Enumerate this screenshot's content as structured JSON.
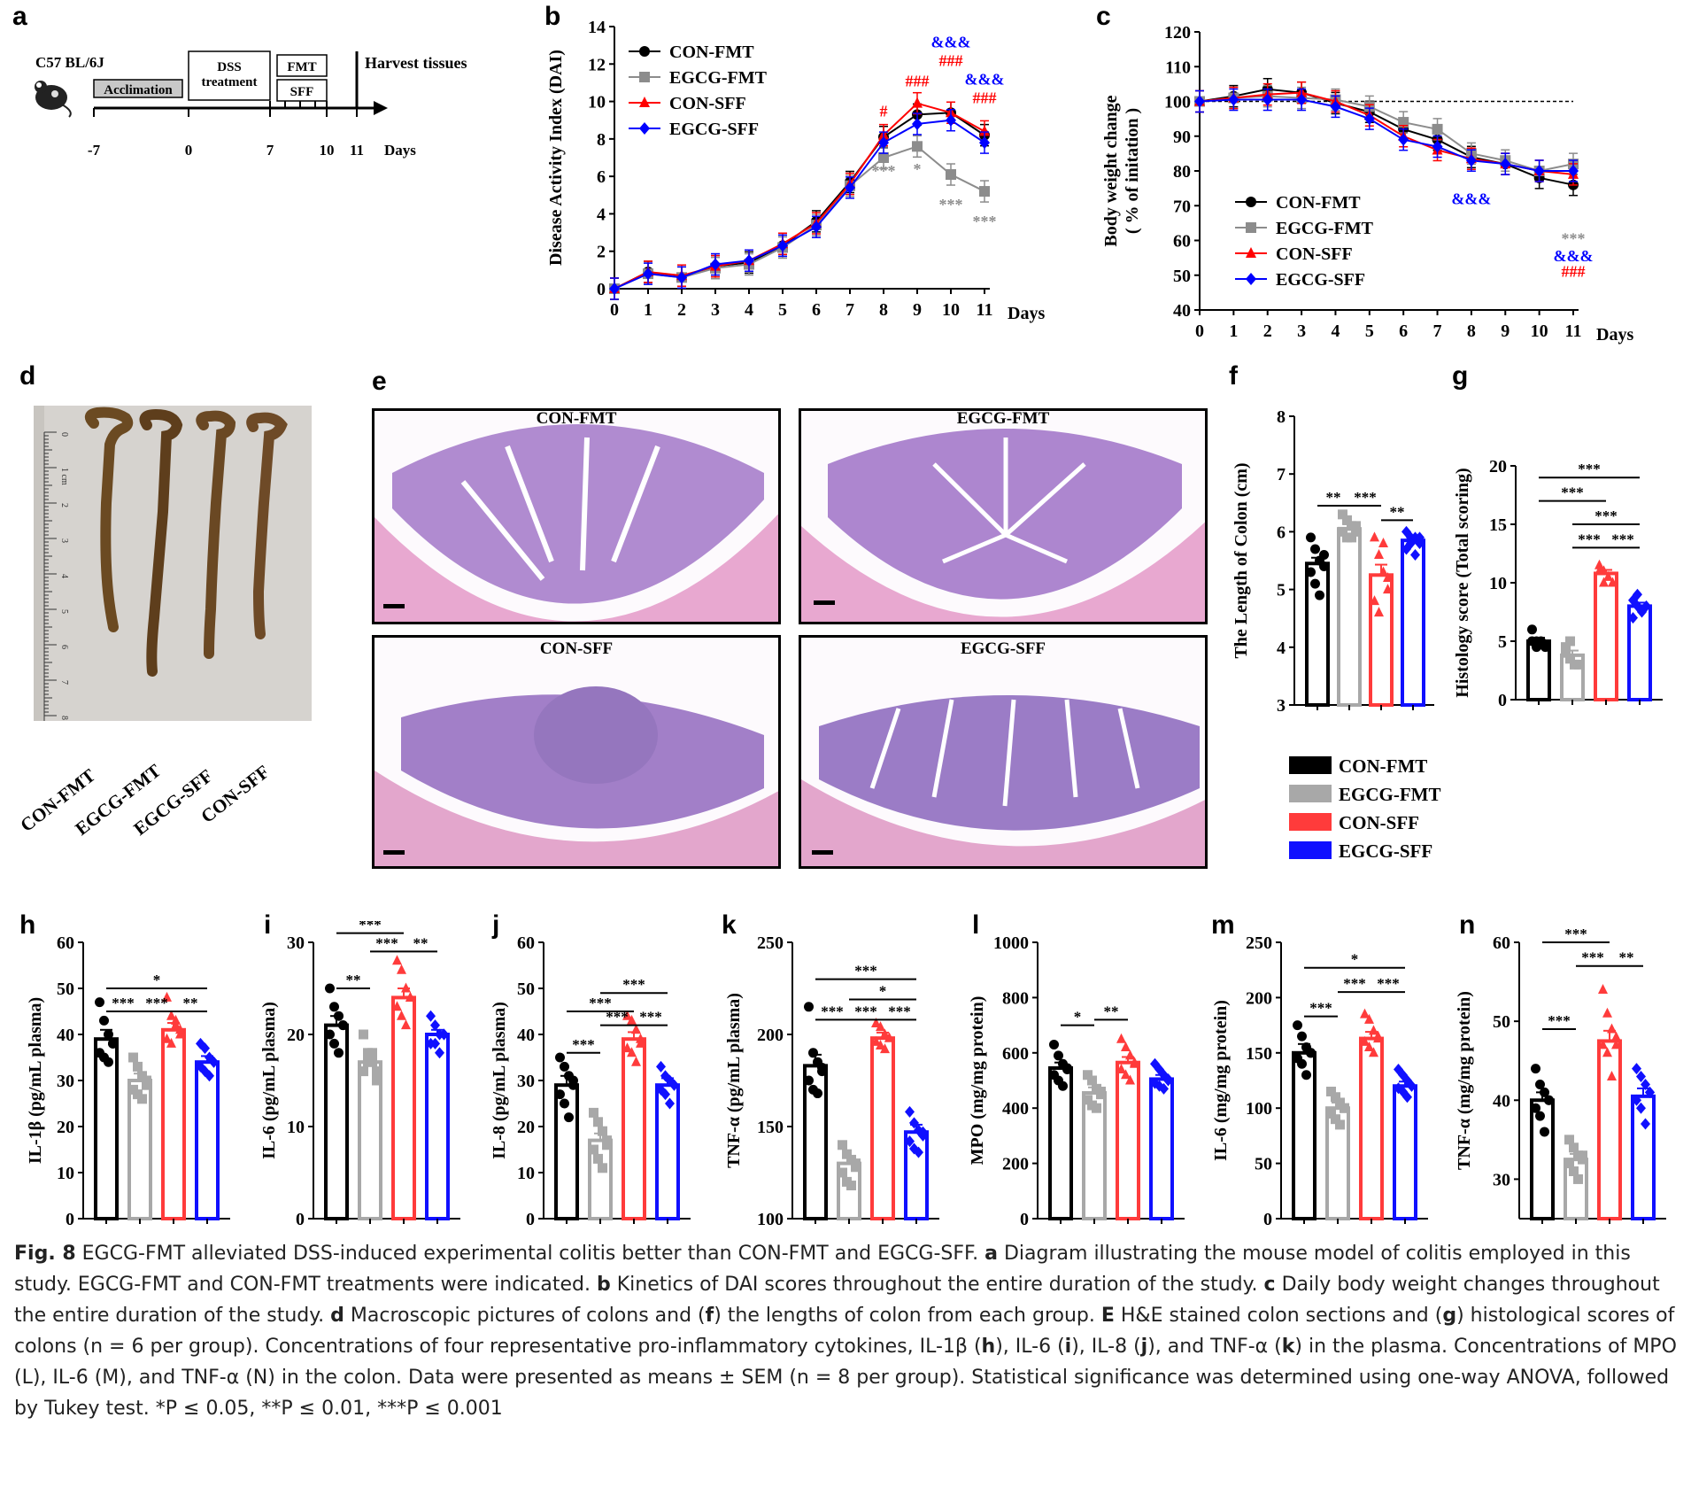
{
  "panels": {
    "a": "a",
    "b": "b",
    "c": "c",
    "d": "d",
    "e": "e",
    "f": "f",
    "g": "g",
    "h": "h",
    "i": "i",
    "j": "j",
    "k": "k",
    "l": "l",
    "m": "m",
    "n": "n"
  },
  "colors": {
    "con_fmt": "#000000",
    "egcg_fmt": "#8c8c8c",
    "con_sff": "#ff0000",
    "egcg_sff": "#0000ff",
    "bar_egcg_fmt": "#a8a8a8",
    "bar_con_sff": "#ff3b3b",
    "bar_egcg_sff": "#1010ff"
  },
  "timeline": {
    "strain": "C57 BL/6J",
    "acclimation": "Acclimation",
    "dss": "DSS treatment",
    "fmt": "FMT",
    "sff": "SFF",
    "harvest": "Harvest tissues",
    "ticks": [
      "-7",
      "0",
      "7",
      "10",
      "11"
    ],
    "unit": "Days"
  },
  "legend_groups": [
    "CON-FMT",
    "EGCG-FMT",
    "CON-SFF",
    "EGCG-SFF"
  ],
  "colon_photo": {
    "labels": [
      "CON-FMT",
      "EGCG-FMT",
      "EGCG-SFF",
      "CON-SFF"
    ],
    "ruler": [
      "0",
      "1 cm",
      "2",
      "3",
      "4",
      "5",
      "6",
      "7",
      "8"
    ]
  },
  "histology": {
    "titles": [
      "CON-FMT",
      "EGCG-FMT",
      "CON-SFF",
      "EGCG-SFF"
    ]
  },
  "chart_data": [
    {
      "id": "b",
      "type": "line",
      "ylabel": "Disease Activity Index (DAI)",
      "xlabel": "Days",
      "x": [
        0,
        1,
        2,
        3,
        4,
        5,
        6,
        7,
        8,
        9,
        10,
        11
      ],
      "ylim": [
        0,
        14
      ],
      "yticks": [
        0,
        2,
        4,
        6,
        8,
        10,
        12,
        14
      ],
      "series": [
        {
          "name": "CON-FMT",
          "values": [
            0,
            0.9,
            0.6,
            1.2,
            1.4,
            2.3,
            3.6,
            5.7,
            8.1,
            9.3,
            9.4,
            8.2
          ]
        },
        {
          "name": "EGCG-FMT",
          "values": [
            0,
            0.8,
            0.6,
            1.1,
            1.3,
            2.2,
            3.4,
            5.5,
            7.0,
            7.6,
            6.1,
            5.2
          ]
        },
        {
          "name": "CON-SFF",
          "values": [
            0,
            0.9,
            0.7,
            1.2,
            1.5,
            2.4,
            3.5,
            5.6,
            8.2,
            9.9,
            9.4,
            8.4
          ]
        },
        {
          "name": "EGCG-SFF",
          "values": [
            0,
            0.8,
            0.6,
            1.3,
            1.5,
            2.3,
            3.3,
            5.4,
            7.8,
            8.8,
            9.0,
            7.8
          ]
        }
      ],
      "annotations": [
        {
          "x": 8,
          "y": 6.0,
          "text": "***",
          "color": "#8c8c8c"
        },
        {
          "x": 9,
          "y": 6.1,
          "text": "*",
          "color": "#8c8c8c"
        },
        {
          "x": 10,
          "y": 4.2,
          "text": "***",
          "color": "#8c8c8c"
        },
        {
          "x": 11,
          "y": 3.3,
          "text": "***",
          "color": "#8c8c8c"
        },
        {
          "x": 8,
          "y": 9.2,
          "text": "#",
          "color": "#ff0000"
        },
        {
          "x": 9,
          "y": 10.8,
          "text": "###",
          "color": "#ff0000"
        },
        {
          "x": 10,
          "y": 11.9,
          "text": "###",
          "color": "#ff0000"
        },
        {
          "x": 10,
          "y": 12.9,
          "text": "&&&",
          "color": "#0000ff"
        },
        {
          "x": 11,
          "y": 9.9,
          "text": "###",
          "color": "#ff0000"
        },
        {
          "x": 11,
          "y": 10.9,
          "text": "&&&",
          "color": "#0000ff"
        }
      ]
    },
    {
      "id": "c",
      "type": "line",
      "ylabel": "Body weight change",
      "ylabel2": "( % of initation )",
      "xlabel": "Days",
      "x": [
        0,
        1,
        2,
        3,
        4,
        5,
        6,
        7,
        8,
        9,
        10,
        11
      ],
      "ylim": [
        40,
        120
      ],
      "yticks": [
        40,
        50,
        60,
        70,
        80,
        90,
        100,
        110,
        120
      ],
      "refline": 100,
      "series": [
        {
          "name": "CON-FMT",
          "values": [
            100,
            101.5,
            103.5,
            102.5,
            99.5,
            97,
            92,
            89,
            84,
            82,
            78,
            76
          ]
        },
        {
          "name": "EGCG-FMT",
          "values": [
            100,
            101,
            101.5,
            101,
            100.5,
            98.5,
            94,
            92,
            85,
            83,
            80,
            82
          ]
        },
        {
          "name": "CON-SFF",
          "values": [
            100,
            101,
            102,
            102.5,
            100,
            96,
            90,
            86,
            83.5,
            82,
            80,
            79
          ]
        },
        {
          "name": "EGCG-SFF",
          "values": [
            100,
            100.5,
            100.5,
            100.5,
            98.5,
            95,
            89,
            87,
            83,
            82,
            80,
            80
          ]
        }
      ],
      "annotations": [
        {
          "x": 8,
          "y": 70.5,
          "text": "&&&",
          "color": "#0000ff"
        },
        {
          "x": 11,
          "y": 59,
          "text": "***",
          "color": "#8c8c8c"
        },
        {
          "x": 11,
          "y": 54,
          "text": "&&&",
          "color": "#0000ff"
        },
        {
          "x": 11,
          "y": 49.5,
          "text": "###",
          "color": "#ff0000"
        }
      ]
    },
    {
      "id": "f",
      "type": "bar",
      "ylabel": "The Length of  Colon (cm)",
      "categories": [
        "CON-FMT",
        "EGCG-FMT",
        "CON-SFF",
        "EGCG-SFF"
      ],
      "values": [
        5.45,
        6.05,
        5.25,
        5.85
      ],
      "sem": [
        0.1,
        0.08,
        0.18,
        0.07
      ],
      "ylim": [
        3,
        8
      ],
      "yticks": [
        3,
        4,
        5,
        6,
        7,
        8
      ],
      "points": [
        [
          5.9,
          5.7,
          5.5,
          5.4,
          5.3,
          5.1,
          4.9,
          5.6
        ],
        [
          6.3,
          6.2,
          6.1,
          6.0,
          6.0,
          5.9,
          5.9,
          6.1
        ],
        [
          5.9,
          5.6,
          5.3,
          5.0,
          4.8,
          4.6,
          5.8,
          5.2
        ],
        [
          6.0,
          5.9,
          5.9,
          5.8,
          5.7,
          5.8,
          5.6,
          5.9
        ]
      ],
      "brackets": [
        [
          0,
          1,
          6.45,
          "**"
        ],
        [
          1,
          2,
          6.45,
          "***"
        ],
        [
          2,
          3,
          6.2,
          "**"
        ]
      ]
    },
    {
      "id": "g",
      "type": "bar",
      "ylabel": "Histology score (Total scoring)",
      "categories": [
        "CON-FMT",
        "EGCG-FMT",
        "CON-SFF",
        "EGCG-SFF"
      ],
      "values": [
        5.0,
        3.8,
        10.8,
        8.0
      ],
      "sem": [
        0.3,
        0.4,
        0.3,
        0.3
      ],
      "ylim": [
        0,
        20
      ],
      "yticks": [
        0,
        5,
        10,
        15,
        20
      ],
      "points": [
        [
          6,
          5,
          5,
          4.5,
          5,
          4.5
        ],
        [
          4.5,
          3.5,
          3,
          3,
          4,
          5
        ],
        [
          11.5,
          11,
          10.5,
          10,
          11,
          10
        ],
        [
          8.5,
          8,
          7.5,
          8,
          7,
          9
        ]
      ],
      "brackets": [
        [
          0,
          3,
          19,
          "***"
        ],
        [
          0,
          2,
          17,
          "***"
        ],
        [
          1,
          3,
          15,
          "***"
        ],
        [
          1,
          2,
          13,
          "***"
        ],
        [
          2,
          3,
          13,
          "***"
        ]
      ]
    },
    {
      "id": "h",
      "type": "bar",
      "ylabel": "IL-1β (pg/mL plasma)",
      "categories": [
        "CON-FMT",
        "EGCG-FMT",
        "CON-SFF",
        "EGCG-SFF"
      ],
      "values": [
        39,
        30,
        41,
        34
      ],
      "sem": [
        2,
        1.5,
        1.5,
        1.3
      ],
      "ylim": [
        0,
        60
      ],
      "yticks": [
        0,
        10,
        20,
        30,
        40,
        50,
        60
      ],
      "points": [
        [
          47,
          43,
          40,
          38,
          36,
          35,
          34,
          38
        ],
        [
          35,
          33,
          31,
          29,
          28,
          27,
          26,
          30
        ],
        [
          48,
          44,
          42,
          40,
          39,
          38,
          43,
          41
        ],
        [
          38,
          37,
          35,
          34,
          33,
          32,
          31,
          34
        ]
      ],
      "brackets": [
        [
          0,
          3,
          50,
          "*"
        ],
        [
          0,
          1,
          45,
          "***"
        ],
        [
          1,
          2,
          45,
          "***"
        ],
        [
          2,
          3,
          45,
          "**"
        ]
      ]
    },
    {
      "id": "i",
      "type": "bar",
      "ylabel": "IL-6 (pg/mL plasma)",
      "categories": [
        "CON-FMT",
        "EGCG-FMT",
        "CON-SFF",
        "EGCG-SFF"
      ],
      "values": [
        21,
        17,
        24,
        20
      ],
      "sem": [
        1,
        0.6,
        1,
        0.5
      ],
      "ylim": [
        0,
        30
      ],
      "yticks": [
        0,
        10,
        20,
        30
      ],
      "points": [
        [
          25,
          23,
          22,
          21,
          20,
          19,
          18,
          21
        ],
        [
          20,
          18,
          17,
          16,
          16,
          17,
          18,
          15
        ],
        [
          28,
          27,
          25,
          24,
          23,
          22,
          21,
          24
        ],
        [
          22,
          21,
          20,
          20,
          19,
          19,
          18,
          20
        ]
      ],
      "brackets": [
        [
          0,
          2,
          31,
          "***"
        ],
        [
          1,
          2,
          29,
          "***"
        ],
        [
          2,
          3,
          29,
          "**"
        ],
        [
          0,
          1,
          25,
          "**"
        ]
      ]
    },
    {
      "id": "j",
      "type": "bar",
      "ylabel": "IL-8 (pg/mL plasma)",
      "categories": [
        "CON-FMT",
        "EGCG-FMT",
        "CON-SFF",
        "EGCG-SFF"
      ],
      "values": [
        29,
        17,
        39,
        29
      ],
      "sem": [
        2,
        1.5,
        1.5,
        1.5
      ],
      "ylim": [
        0,
        60
      ],
      "yticks": [
        0,
        10,
        20,
        30,
        40,
        50,
        60
      ],
      "points": [
        [
          35,
          33,
          31,
          29,
          27,
          25,
          22,
          30
        ],
        [
          23,
          21,
          19,
          17,
          15,
          13,
          11,
          16
        ],
        [
          44,
          43,
          41,
          39,
          37,
          36,
          34,
          38
        ],
        [
          33,
          31,
          30,
          29,
          28,
          27,
          25,
          29
        ]
      ],
      "brackets": [
        [
          1,
          3,
          49,
          "***"
        ],
        [
          0,
          2,
          45,
          "***"
        ],
        [
          1,
          2,
          42,
          "***"
        ],
        [
          2,
          3,
          42,
          "***"
        ],
        [
          0,
          1,
          36,
          "***"
        ]
      ]
    },
    {
      "id": "k",
      "type": "bar",
      "ylabel": "TNF-α (pg/mL plasma)",
      "categories": [
        "CON-FMT",
        "EGCG-FMT",
        "CON-SFF",
        "EGCG-SFF"
      ],
      "values": [
        183,
        130,
        198,
        147
      ],
      "sem": [
        6,
        4,
        3,
        4
      ],
      "ylim": [
        100,
        250
      ],
      "yticks": [
        100,
        150,
        200,
        250
      ],
      "points": [
        [
          215,
          190,
          185,
          180,
          175,
          170,
          168,
          182
        ],
        [
          140,
          135,
          132,
          128,
          125,
          120,
          118,
          130
        ],
        [
          206,
          204,
          200,
          198,
          196,
          194,
          192,
          198
        ],
        [
          158,
          152,
          148,
          145,
          142,
          138,
          136,
          147
        ]
      ],
      "brackets": [
        [
          0,
          3,
          230,
          "***"
        ],
        [
          1,
          3,
          219,
          "*"
        ],
        [
          0,
          1,
          208,
          "***"
        ],
        [
          1,
          2,
          208,
          "***"
        ],
        [
          2,
          3,
          208,
          "***"
        ]
      ]
    },
    {
      "id": "l",
      "type": "bar",
      "ylabel": "MPO (mg/mg protein)",
      "categories": [
        "CON-FMT",
        "EGCG-FMT",
        "CON-SFF",
        "EGCG-SFF"
      ],
      "values": [
        545,
        455,
        565,
        505
      ],
      "sem": [
        20,
        20,
        20,
        15
      ],
      "ylim": [
        0,
        1000
      ],
      "yticks": [
        0,
        200,
        400,
        600,
        800,
        1000
      ],
      "points": [
        [
          630,
          590,
          560,
          540,
          520,
          500,
          480,
          545
        ],
        [
          520,
          500,
          470,
          450,
          430,
          410,
          400,
          460
        ],
        [
          650,
          620,
          590,
          560,
          540,
          520,
          500,
          565
        ],
        [
          560,
          540,
          520,
          500,
          490,
          480,
          470,
          505
        ]
      ],
      "brackets": [
        [
          0,
          1,
          700,
          "*"
        ],
        [
          1,
          2,
          720,
          "**"
        ]
      ]
    },
    {
      "id": "m",
      "type": "bar",
      "ylabel": "IL-6 (mg/mg protein)",
      "categories": [
        "CON-FMT",
        "EGCG-FMT",
        "CON-SFF",
        "EGCG-SFF"
      ],
      "values": [
        150,
        100,
        163,
        120
      ],
      "sem": [
        8,
        5,
        6,
        4
      ],
      "ylim": [
        0,
        250
      ],
      "yticks": [
        0,
        50,
        100,
        150,
        200,
        250
      ],
      "points": [
        [
          175,
          165,
          155,
          150,
          145,
          140,
          130,
          150
        ],
        [
          115,
          110,
          105,
          100,
          95,
          90,
          85,
          100
        ],
        [
          185,
          180,
          170,
          165,
          160,
          155,
          150,
          163
        ],
        [
          135,
          130,
          125,
          120,
          118,
          115,
          110,
          120
        ]
      ],
      "brackets": [
        [
          0,
          3,
          227,
          "*"
        ],
        [
          1,
          2,
          205,
          "***"
        ],
        [
          2,
          3,
          205,
          "***"
        ],
        [
          0,
          1,
          183,
          "***"
        ]
      ]
    },
    {
      "id": "n",
      "type": "bar",
      "ylabel": "TNF-α (mg/mg protein)",
      "categories": [
        "CON-FMT",
        "EGCG-FMT",
        "CON-SFF",
        "EGCG-SFF"
      ],
      "values": [
        40,
        32.5,
        47.5,
        40.5
      ],
      "sem": [
        1,
        0.7,
        1.3,
        1
      ],
      "ylim": [
        25,
        60
      ],
      "yticks": [
        30,
        40,
        50,
        60
      ],
      "points": [
        [
          44,
          42,
          41,
          40,
          39,
          38,
          36,
          40
        ],
        [
          35,
          34,
          33,
          32.5,
          32,
          31,
          30,
          33
        ],
        [
          54,
          51,
          49,
          48,
          47,
          46,
          43,
          47
        ],
        [
          44,
          43,
          42,
          41,
          40,
          39,
          37,
          41
        ]
      ],
      "brackets": [
        [
          0,
          2,
          60,
          "***"
        ],
        [
          1,
          2,
          57,
          "***"
        ],
        [
          2,
          3,
          57,
          "**"
        ],
        [
          0,
          1,
          49,
          "***"
        ]
      ]
    }
  ],
  "caption": {
    "fig": "Fig. 8",
    "segments": [
      [
        "",
        "  EGCG-FMT alleviated DSS-induced experimental colitis better than CON-FMT and EGCG-SFF. "
      ],
      [
        "a",
        " Diagram illustrating the mouse model of colitis employed in this study. EGCG-FMT and CON-FMT treatments were indicated. "
      ],
      [
        "b",
        " Kinetics of DAI scores throughout the entire duration of the study. "
      ],
      [
        "c",
        " Daily body weight changes throughout the entire duration of the study. "
      ],
      [
        "d",
        " Macroscopic pictures of colons and ("
      ],
      [
        "f",
        ") the lengths of colon from each group. "
      ],
      [
        "E",
        " H&E stained colon sections and ("
      ],
      [
        "g",
        ") histological scores of colons (n = 6 per group). Concentrations of four representative pro-inflammatory cytokines, IL-1β ("
      ],
      [
        "h",
        "), IL-6 ("
      ],
      [
        "i",
        "), IL-8 ("
      ],
      [
        "j",
        "), and TNF-α ("
      ],
      [
        "k",
        ") in the plasma. Concentrations of MPO (L), IL-6 (M), and TNF-α (N) in the colon. Data were presented as means ± SEM (n = 8 per group). Statistical significance was determined using one-way ANOVA, followed by Tukey test. *P ≤ 0.05, **P ≤ 0.01, ***P ≤ 0.001"
      ]
    ]
  }
}
